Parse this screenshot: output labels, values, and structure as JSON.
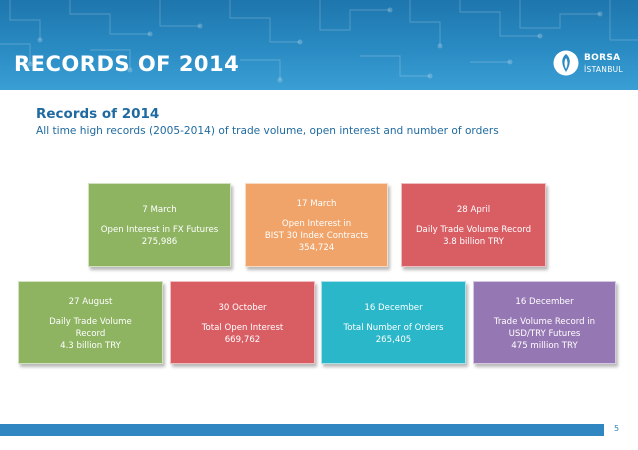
{
  "header": {
    "title": "RECORDS OF 2014",
    "logo": {
      "line1": "BORSA",
      "line2": "İSTANBUL",
      "icon": "tulip-emblem-icon"
    }
  },
  "section": {
    "subtitle": "Records of 2014",
    "description": "All time high records (2005-2014) of trade volume, open interest and number of orders"
  },
  "cards": [
    {
      "date": "7 March",
      "lines": [
        "Open Interest in FX Futures",
        "275,986"
      ],
      "color": "#8eb462"
    },
    {
      "date": "17 March",
      "lines": [
        "Open Interest in",
        "BIST 30 Index Contracts",
        "354,724"
      ],
      "color": "#f0a469"
    },
    {
      "date": "28 April",
      "lines": [
        "Daily Trade Volume Record",
        "3.8 billion TRY"
      ],
      "color": "#d95e64"
    },
    {
      "date": "27 August",
      "lines": [
        "Daily Trade Volume",
        "Record",
        "4.3 billion TRY"
      ],
      "color": "#8eb462"
    },
    {
      "date": "30 October",
      "lines": [
        "Total Open Interest",
        "669,762"
      ],
      "color": "#d95e64"
    },
    {
      "date": "16 December",
      "lines": [
        "Total Number of Orders",
        "265,405"
      ],
      "color": "#29b7c9"
    },
    {
      "date": "16 December",
      "lines": [
        "Trade Volume Record in",
        "USD/TRY Futures",
        "475 million TRY"
      ],
      "color": "#9577b3"
    }
  ],
  "footer": {
    "page_number": "5"
  }
}
